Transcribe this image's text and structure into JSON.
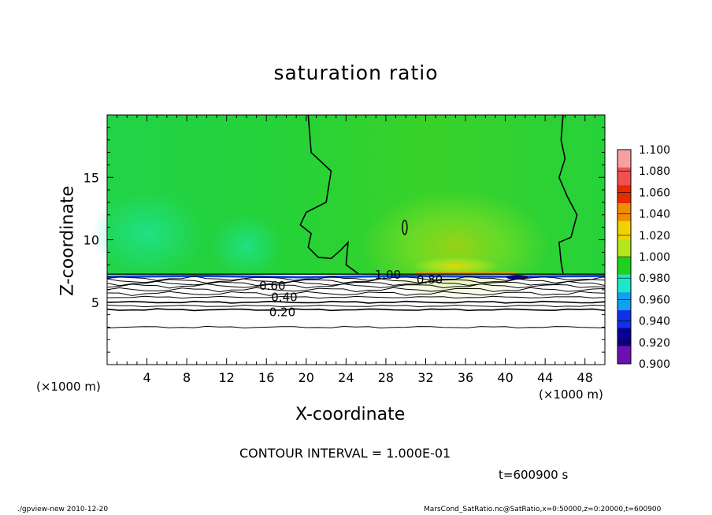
{
  "chart_data": {
    "type": "heatmap",
    "title": "saturation ratio",
    "xlabel": "X-coordinate",
    "ylabel": "Z-coordinate",
    "x_unit_label": "(×1000 m)",
    "x_ticks": [
      4,
      8,
      12,
      16,
      20,
      24,
      28,
      32,
      36,
      40,
      44,
      48
    ],
    "y_ticks": [
      5,
      10,
      15
    ],
    "xlim": [
      0,
      50
    ],
    "ylim": [
      0,
      20
    ],
    "colorbar": {
      "levels": [
        "1.100",
        "1.080",
        "1.060",
        "1.040",
        "1.020",
        "1.000",
        "0.980",
        "0.960",
        "0.940",
        "0.920",
        "0.900"
      ],
      "colors": [
        "#f6a0a0",
        "#f05050",
        "#e82a00",
        "#f08c00",
        "#f0d200",
        "#b4e61e",
        "#20d020",
        "#1ee6c8",
        "#10a0f0",
        "#1030e6",
        "#0a0090",
        "#6a10b0"
      ]
    },
    "contour_labels": [
      {
        "text": "0.60",
        "x": 16.6,
        "z": 6.3
      },
      {
        "text": "0.40",
        "x": 17.8,
        "z": 5.4
      },
      {
        "text": "0.20",
        "x": 17.6,
        "z": 4.2
      },
      {
        "text": "1.00",
        "x": 28.2,
        "z": 7.2
      },
      {
        "text": "0.80",
        "x": 32.4,
        "z": 6.8
      }
    ],
    "contour_interval": "CONTOUR INTERVAL = 1.000E-01",
    "time_label": "t=600900 s"
  },
  "footer": {
    "left": "./gpview-new   2010-12-20",
    "right": "MarsCond_SatRatio.nc@SatRatio,x=0:50000,z=0:20000,t=600900"
  }
}
